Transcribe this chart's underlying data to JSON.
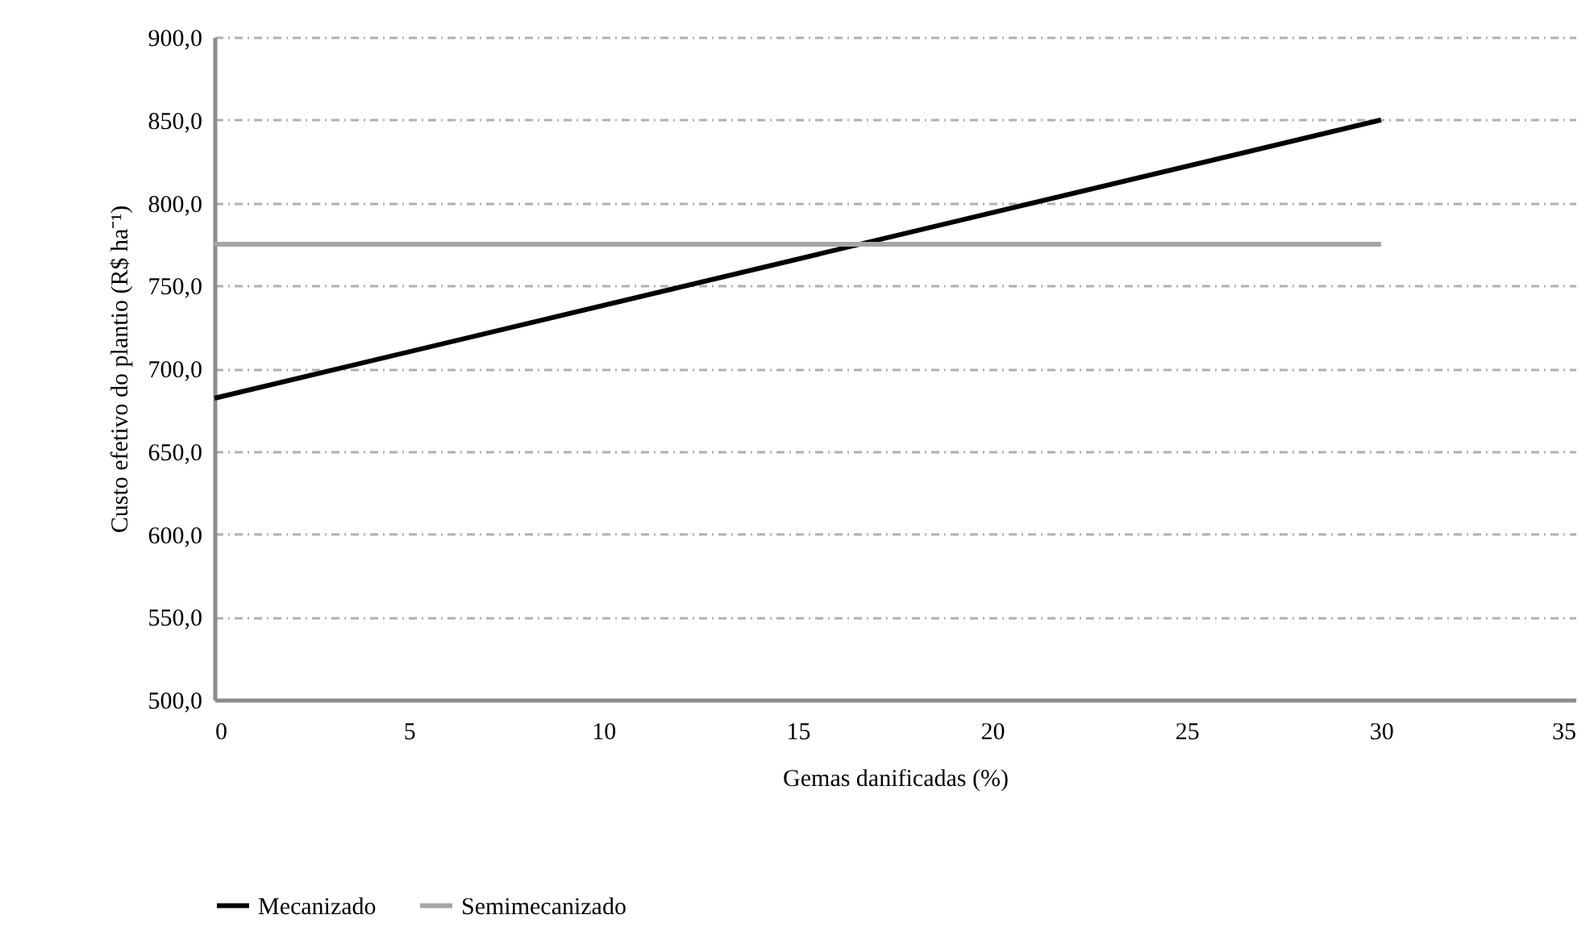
{
  "chart_data": {
    "type": "line",
    "xlabel": "Gemas danificadas (%)",
    "ylabel": "Custo efetivo do plantio (R$ ha⁻¹)",
    "x": [
      0,
      30
    ],
    "series": [
      {
        "name": "Mecanizado",
        "color": "#000000",
        "values": [
          682,
          850
        ]
      },
      {
        "name": "Semimecanizado",
        "color": "#a6a6a6",
        "values": [
          775,
          775
        ]
      }
    ],
    "xlim": [
      0,
      35
    ],
    "xticks": [
      0,
      5,
      10,
      15,
      20,
      25,
      30,
      35
    ],
    "ylim": [
      500,
      900
    ],
    "yticks": [
      {
        "value": 500,
        "label": "500,0"
      },
      {
        "value": 550,
        "label": "550,0"
      },
      {
        "value": 600,
        "label": "600,0"
      },
      {
        "value": 650,
        "label": "650,0"
      },
      {
        "value": 700,
        "label": "700,0"
      },
      {
        "value": 750,
        "label": "750,0"
      },
      {
        "value": 800,
        "label": "800,0"
      },
      {
        "value": 850,
        "label": "850,0"
      },
      {
        "value": 900,
        "label": "900,0"
      }
    ],
    "grid": "y",
    "legend": "bottom"
  }
}
